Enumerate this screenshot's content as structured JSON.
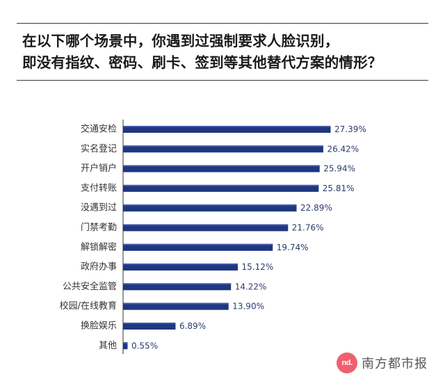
{
  "title": {
    "line1": "在以下哪个场景中，你遇到过强制要求人脸识别，",
    "line2": "即没有指纹、密码、刷卡、签到等其他替代方案的情形？"
  },
  "brand": {
    "logo_text": "nd.",
    "name": "南方都市报"
  },
  "colors": {
    "bar": "#1f3680",
    "bar_highlight": "#3f58a8",
    "axis": "#333333",
    "value_text": "#2b3a6b",
    "logo": "#f0606e"
  },
  "chart_data": {
    "type": "bar",
    "orientation": "horizontal",
    "categories": [
      "交通安检",
      "实名登记",
      "开户销户",
      "支付转账",
      "没遇到过",
      "门禁考勤",
      "解锁解密",
      "政府办事",
      "公共安全监管",
      "校园/在线教育",
      "换脸娱乐",
      "其他"
    ],
    "values": [
      27.39,
      26.42,
      25.94,
      25.81,
      22.89,
      21.76,
      19.74,
      15.12,
      14.22,
      13.9,
      6.89,
      0.55
    ],
    "value_labels": [
      "27.39%",
      "26.42%",
      "25.94%",
      "25.81%",
      "22.89%",
      "21.76%",
      "19.74%",
      "15.12%",
      "14.22%",
      "13.90%",
      "6.89%",
      "0.55%"
    ],
    "unit": "%",
    "xlim": [
      0,
      27.39
    ],
    "grid": false,
    "legend": "none"
  }
}
